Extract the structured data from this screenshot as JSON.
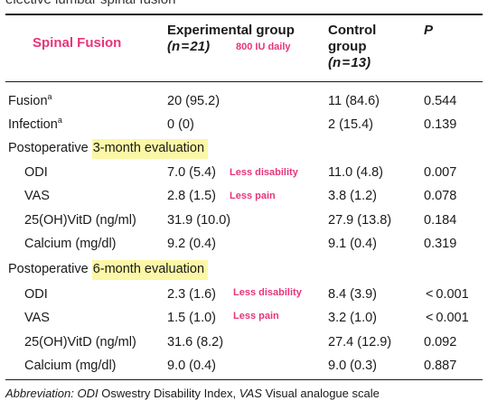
{
  "caption_cut": "elective lumbar spinal fusion",
  "overlay_title": "Spinal Fusion",
  "columns": {
    "experimental": {
      "line1": "Experimental group",
      "line2": "(n = 21)",
      "note": "800 IU daily"
    },
    "control": {
      "line1": "Control",
      "line2": "group",
      "line3": "(n = 13)"
    },
    "p": "P"
  },
  "rows": {
    "fusion": {
      "label": "Fusion",
      "sup": "a",
      "exp": "20 (95.2)",
      "ctl": "11 (84.6)",
      "p": "0.544"
    },
    "infection": {
      "label": "Infection",
      "sup": "a",
      "exp": "0 (0)",
      "ctl": "2 (15.4)",
      "p": "0.139"
    },
    "section3": {
      "prefix": "Postoperative ",
      "highlight": "3-month evaluation"
    },
    "odi3": {
      "label": "ODI",
      "exp": "7.0 (5.4)",
      "note": "Less disability",
      "ctl": "11.0 (4.8)",
      "p": "0.007"
    },
    "vas3": {
      "label": "VAS",
      "exp": "2.8 (1.5)",
      "note": "Less pain",
      "ctl": "3.8 (1.2)",
      "p": "0.078"
    },
    "vitd3": {
      "label": "25(OH)VitD (ng/ml)",
      "exp": "31.9 (10.0)",
      "ctl": "27.9 (13.8)",
      "p": "0.184"
    },
    "ca3": {
      "label": "Calcium (mg/dl)",
      "exp": "9.2 (0.4)",
      "ctl": "9.1 (0.4)",
      "p": "0.319"
    },
    "section6": {
      "prefix": "Postoperative ",
      "highlight": "6-month evaluation"
    },
    "odi6": {
      "label": "ODI",
      "exp": "2.3 (1.6)",
      "note": "Less disability",
      "ctl": "8.4 (3.9)",
      "p": "< 0.001"
    },
    "vas6": {
      "label": "VAS",
      "exp": "1.5 (1.0)",
      "note": "Less pain",
      "ctl": "3.2 (1.0)",
      "p": "< 0.001"
    },
    "vitd6": {
      "label": "25(OH)VitD (ng/ml)",
      "exp": "31.6 (8.2)",
      "ctl": "27.4 (12.9)",
      "p": "0.092"
    },
    "ca6": {
      "label": "Calcium (mg/dl)",
      "exp": "9.0 (0.4)",
      "ctl": "9.0 (0.3)",
      "p": "0.887"
    }
  },
  "footnote": {
    "lead": "Abbreviation:",
    "abbr1": "ODI",
    "def1": " Oswestry Disability Index, ",
    "abbr2": "VAS",
    "def2": " Visual analogue scale"
  }
}
